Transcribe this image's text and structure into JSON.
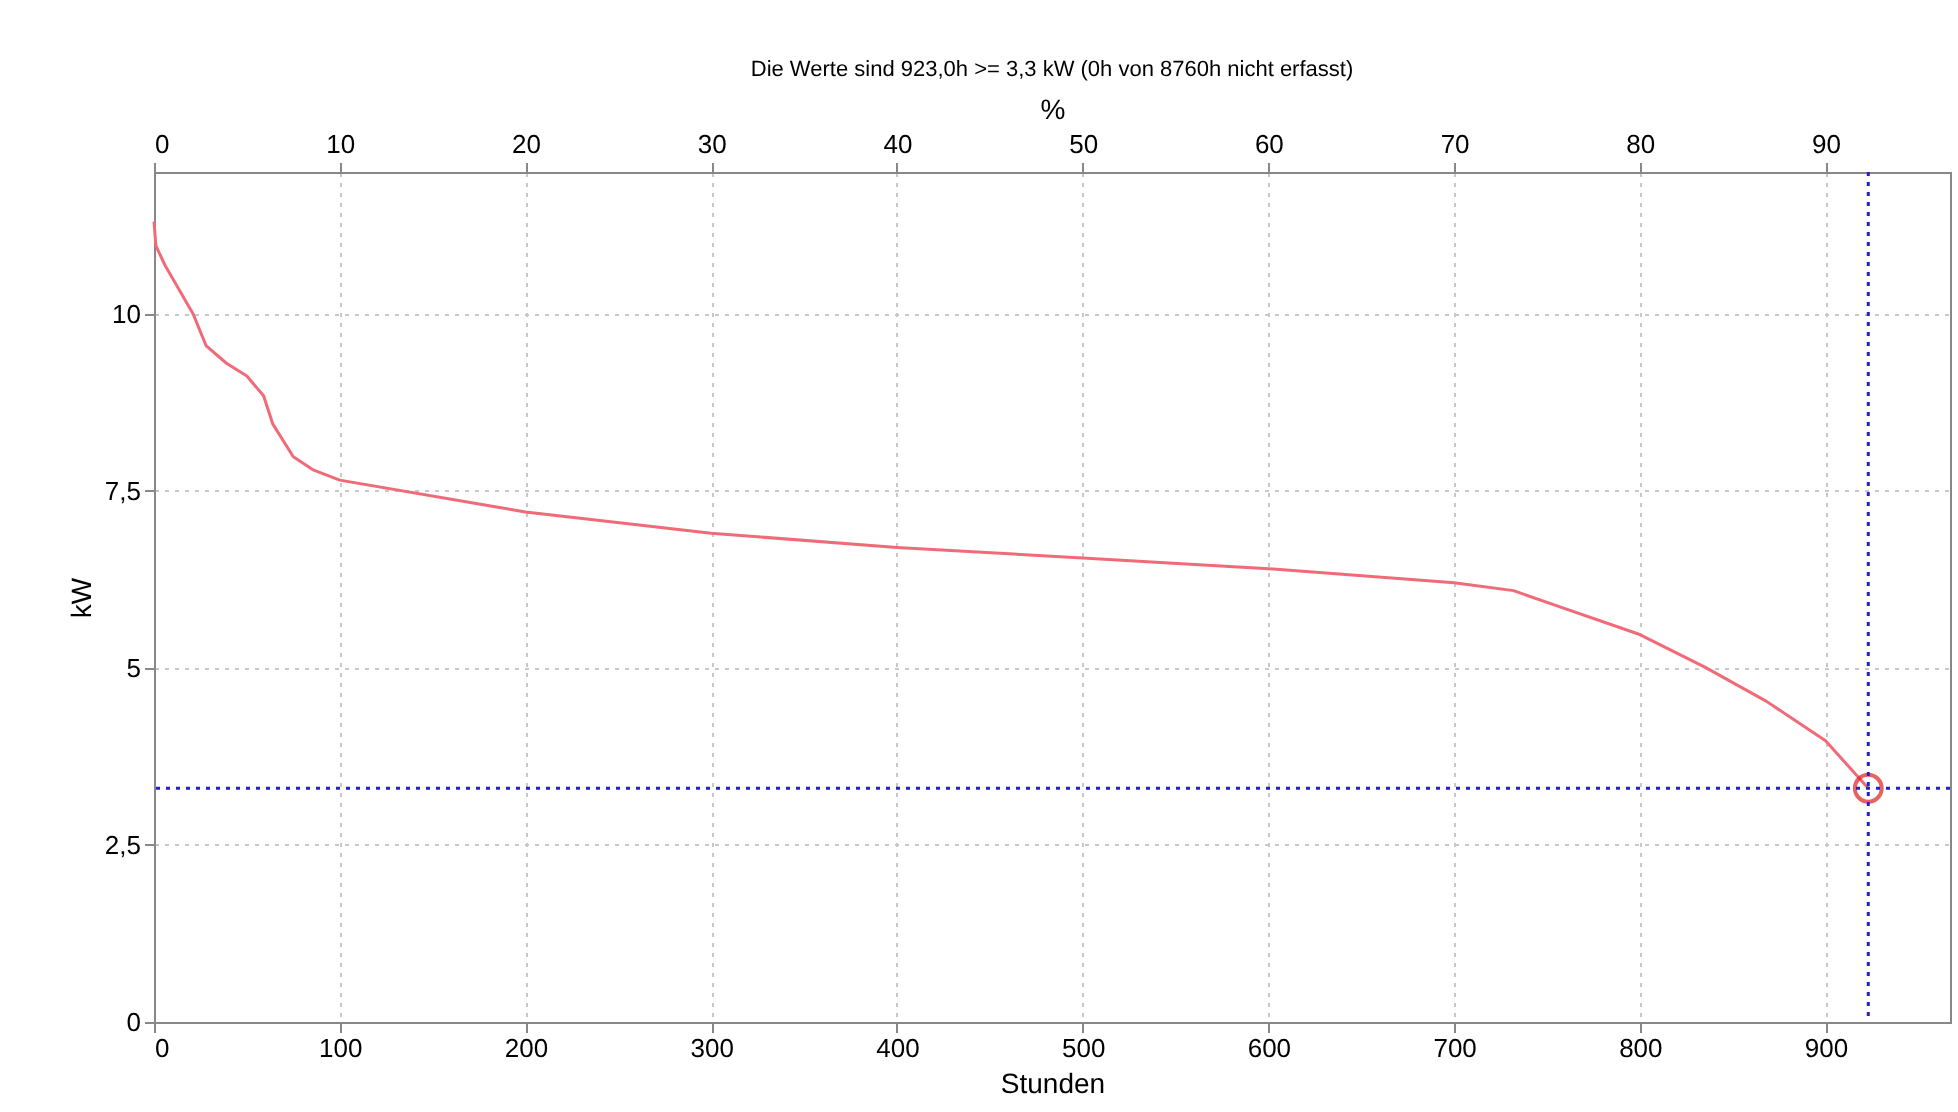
{
  "chart_data": {
    "type": "line",
    "title": "Die Werte sind  923,0h >= 3,3 kW (0h von 8760h nicht erfasst)",
    "xlabel": "Stunden",
    "ylabel": "kW",
    "x2label": "%",
    "xlim": [
      0,
      967
    ],
    "xticks": [
      0,
      100,
      200,
      300,
      400,
      500,
      600,
      700,
      800,
      900
    ],
    "x2lim": [
      0,
      96.7
    ],
    "x2ticks": [
      0,
      10,
      20,
      30,
      40,
      50,
      60,
      70,
      80,
      90
    ],
    "ylim": [
      0,
      12
    ],
    "yticks": [
      0,
      {
        "value": 2.5,
        "label": "2,5"
      },
      5,
      {
        "value": 7.5,
        "label": "7,5"
      },
      10
    ],
    "grid": true,
    "marker": "none",
    "line_style": "solid",
    "series": [
      {
        "type": "line",
        "color": "#f06a78",
        "x": [
          0,
          1,
          6,
          21,
          28,
          39,
          50,
          59,
          64,
          75,
          86,
          100,
          200,
          300,
          400,
          500,
          600,
          700,
          732,
          757,
          800,
          835,
          868,
          900,
          923
        ],
        "values": [
          11.3,
          10.96,
          10.68,
          10.0,
          9.55,
          9.3,
          9.12,
          8.84,
          8.44,
          7.98,
          7.79,
          7.65,
          7.2,
          6.9,
          6.7,
          6.55,
          6.4,
          6.2,
          6.09,
          5.86,
          5.47,
          5.01,
          4.53,
          3.97,
          3.3
        ]
      },
      {
        "type": "scatter",
        "marker": "circle",
        "color": "#e02020",
        "x": [
          923
        ],
        "values": [
          3.3
        ]
      }
    ],
    "ref_lines": [
      {
        "axis": "x",
        "value": 923,
        "color": "#2020d0",
        "line_style": "dotted"
      },
      {
        "axis": "y",
        "value": 3.3,
        "color": "#2020d0",
        "line_style": "dotted"
      }
    ]
  }
}
